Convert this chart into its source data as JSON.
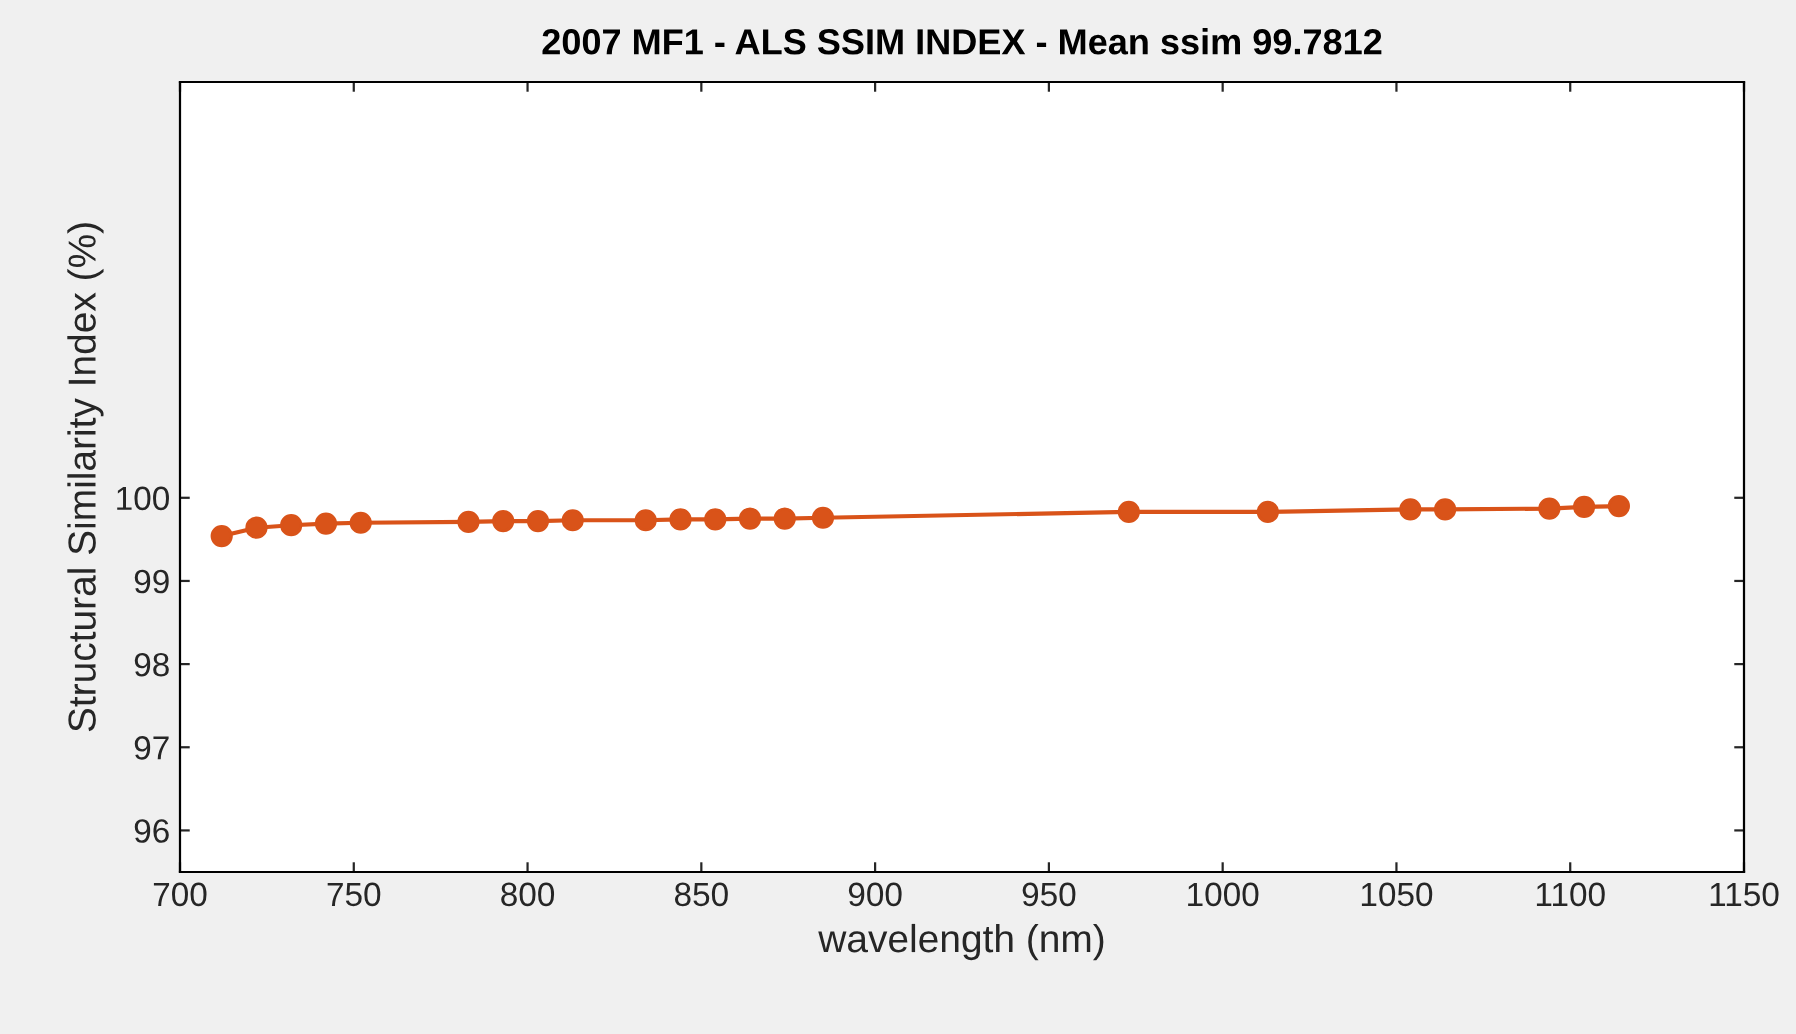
{
  "chart_data": {
    "type": "line",
    "title": "2007 MF1 - ALS SSIM INDEX - Mean ssim 99.7812",
    "xlabel": "wavelength (nm)",
    "ylabel": "Structural Similarity Index (%)",
    "series": [
      {
        "color": "#d95319",
        "x": [
          712,
          722,
          732,
          742,
          752,
          783,
          793,
          803,
          813,
          834,
          844,
          854,
          864,
          874,
          885,
          973,
          1013,
          1054,
          1064,
          1094,
          1104,
          1114
        ],
        "values": [
          99.54,
          99.64,
          99.67,
          99.69,
          99.7,
          99.71,
          99.72,
          99.72,
          99.73,
          99.73,
          99.74,
          99.74,
          99.75,
          99.75,
          99.76,
          99.83,
          99.83,
          99.86,
          99.86,
          99.87,
          99.89,
          99.9
        ]
      }
    ],
    "xlim": [
      700,
      1150
    ],
    "xticks": [
      700,
      750,
      800,
      850,
      900,
      950,
      1000,
      1050,
      1100,
      1150
    ],
    "ylim": [
      95.5,
      105
    ],
    "yticks": [
      96,
      97,
      98,
      99,
      100
    ],
    "grid": false,
    "marker": "circle",
    "line_style": "solid"
  }
}
